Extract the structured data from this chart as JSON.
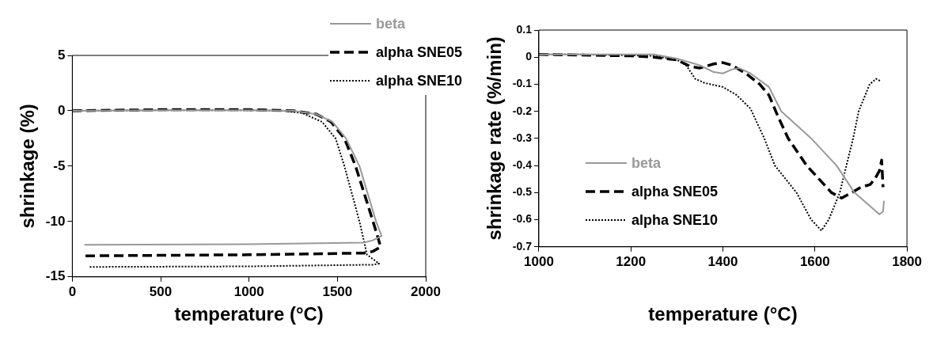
{
  "chart_data": [
    {
      "type": "line",
      "xlabel": "temperature (°C)",
      "ylabel": "shrinkage (%)",
      "xlim": [
        0,
        2000
      ],
      "xticks": [
        0,
        500,
        1000,
        1500,
        2000
      ],
      "ylim": [
        -15,
        5
      ],
      "yticks": [
        -15,
        -10,
        -5,
        0,
        5
      ],
      "grid": false,
      "legend": "top right",
      "marker": "none",
      "series": [
        {
          "name": "beta",
          "color": "#999999",
          "line_style": "solid",
          "x": [
            0,
            500,
            1000,
            1250,
            1380,
            1472,
            1549,
            1625,
            1719,
            1750,
            1700,
            1650,
            1000,
            68
          ],
          "values": [
            0,
            0.05,
            0.05,
            0,
            -0.3,
            -1,
            -2.5,
            -5,
            -10,
            -11.3,
            -11.7,
            -11.9,
            -12.05,
            -12.1
          ]
        },
        {
          "name": "alpha SNE05",
          "color": "#000000",
          "line_style": "dashed",
          "x": [
            0,
            500,
            1000,
            1250,
            1380,
            1464,
            1540,
            1603,
            1702,
            1745,
            1700,
            1650,
            1000,
            68
          ],
          "values": [
            0,
            0.1,
            0.1,
            0,
            -0.3,
            -1,
            -2.5,
            -5,
            -10,
            -12.3,
            -12.7,
            -12.85,
            -13,
            -13.1
          ]
        },
        {
          "name": "alpha SNE10",
          "color": "#000000",
          "line_style": "dotted",
          "x": [
            0,
            500,
            1000,
            1200,
            1300,
            1413,
            1490,
            1540,
            1625,
            1668,
            1736,
            1700,
            1000,
            94
          ],
          "values": [
            0,
            0.05,
            0.05,
            0,
            -0.2,
            -1,
            -2.5,
            -5,
            -10,
            -13,
            -13.8,
            -13.9,
            -14.05,
            -14.1
          ]
        }
      ]
    },
    {
      "type": "line",
      "xlabel": "temperature (°C)",
      "ylabel": "shrinkage rate (%/min)",
      "xlim": [
        1000,
        1800
      ],
      "xticks": [
        1000,
        1200,
        1400,
        1600,
        1800
      ],
      "ylim": [
        -0.7,
        0.1
      ],
      "yticks": [
        -0.7,
        -0.6,
        -0.5,
        -0.4,
        -0.3,
        -0.2,
        -0.1,
        0,
        0.1
      ],
      "grid": false,
      "legend": "bottom left",
      "marker": "none",
      "series": [
        {
          "name": "beta",
          "color": "#999999",
          "line_style": "solid",
          "x": [
            1000,
            1250,
            1300,
            1350,
            1380,
            1400,
            1420,
            1435,
            1460,
            1500,
            1527,
            1592,
            1647,
            1686,
            1720,
            1740,
            1748,
            1750
          ],
          "values": [
            0.01,
            0.01,
            -0.005,
            -0.03,
            -0.055,
            -0.06,
            -0.045,
            -0.04,
            -0.06,
            -0.11,
            -0.2,
            -0.3,
            -0.4,
            -0.5,
            -0.55,
            -0.58,
            -0.57,
            -0.53
          ]
        },
        {
          "name": "alpha SNE05",
          "color": "#000000",
          "line_style": "dashed",
          "x": [
            1000,
            1200,
            1250,
            1300,
            1330,
            1350,
            1380,
            1400,
            1420,
            1450,
            1480,
            1500,
            1520,
            1542,
            1582,
            1636,
            1658,
            1680,
            1700,
            1720,
            1730,
            1740,
            1745,
            1748
          ],
          "values": [
            0.01,
            0.005,
            0,
            -0.01,
            -0.035,
            -0.04,
            -0.025,
            -0.02,
            -0.03,
            -0.06,
            -0.1,
            -0.14,
            -0.22,
            -0.3,
            -0.4,
            -0.5,
            -0.52,
            -0.5,
            -0.48,
            -0.47,
            -0.45,
            -0.42,
            -0.38,
            -0.48
          ]
        },
        {
          "name": "alpha SNE10",
          "color": "#000000",
          "line_style": "dotted",
          "x": [
            1000,
            1090,
            1250,
            1300,
            1320,
            1340,
            1360,
            1400,
            1430,
            1460,
            1490,
            1513,
            1560,
            1592,
            1614,
            1630,
            1654,
            1683,
            1695,
            1719,
            1733,
            1744
          ],
          "values": [
            0.01,
            0.01,
            0.005,
            -0.01,
            -0.03,
            -0.08,
            -0.095,
            -0.11,
            -0.14,
            -0.19,
            -0.3,
            -0.4,
            -0.5,
            -0.6,
            -0.64,
            -0.6,
            -0.5,
            -0.3,
            -0.2,
            -0.1,
            -0.08,
            -0.09
          ]
        }
      ]
    }
  ]
}
